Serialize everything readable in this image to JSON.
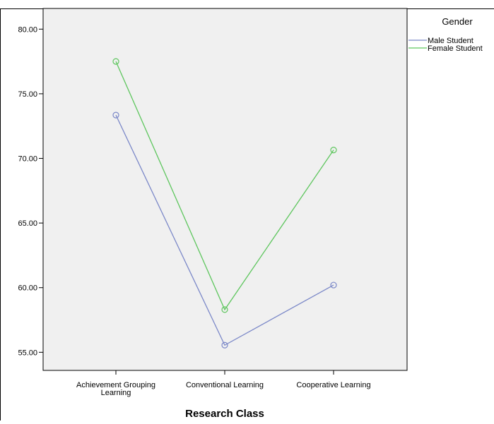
{
  "chart_data": {
    "type": "line",
    "title": "",
    "xlabel": "Research Class",
    "ylabel": "",
    "categories": [
      "Achievement Grouping Learning",
      "Conventional Learning",
      "Cooperative Learning"
    ],
    "category_lines": [
      [
        "Achievement Grouping",
        "Learning"
      ],
      [
        "Conventional Learning"
      ],
      [
        "Cooperative Learning"
      ]
    ],
    "series": [
      {
        "name": "Male Student",
        "values": [
          73.35,
          55.55,
          60.2
        ],
        "color": "#7b88c8"
      },
      {
        "name": "Female Student",
        "values": [
          77.5,
          58.3,
          70.65
        ],
        "color": "#5ec65e"
      }
    ],
    "ylim": [
      53.6,
      81.6
    ],
    "yticks": [
      55,
      60,
      65,
      70,
      75,
      80
    ],
    "ytick_labels": [
      "55.00",
      "60.00",
      "65.00",
      "70.00",
      "75.00",
      "80.00"
    ],
    "grid": false,
    "plot_background": "#f0f0f0",
    "legend": {
      "title": "Gender",
      "position": "right"
    }
  }
}
